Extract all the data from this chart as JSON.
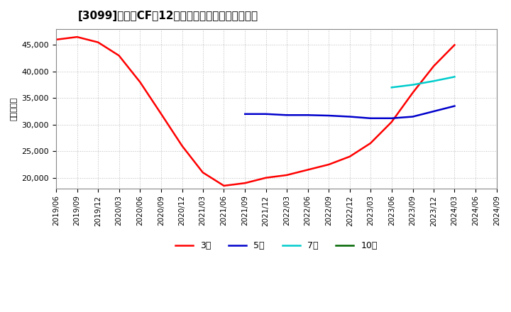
{
  "title": "[3099]　営業CFの12か月移動合計の平均値の推移",
  "ylabel": "（百万円）",
  "bg_color": "#ffffff",
  "plot_bg_color": "#ffffff",
  "grid_color": "#aaaaaa",
  "line_3y": {
    "color": "#ff0000",
    "label": "3年",
    "dates": [
      "2019-06",
      "2019-09",
      "2019-12",
      "2020-03",
      "2020-06",
      "2020-09",
      "2020-12",
      "2021-03",
      "2021-06",
      "2021-09",
      "2021-12",
      "2022-03",
      "2022-06",
      "2022-09",
      "2022-12",
      "2023-03",
      "2023-06",
      "2023-09",
      "2023-12",
      "2024-03"
    ],
    "values": [
      46000,
      46500,
      45500,
      43000,
      38000,
      32000,
      26000,
      21000,
      18500,
      19000,
      20000,
      20500,
      21500,
      22500,
      24000,
      26500,
      30500,
      36000,
      41000,
      45000
    ]
  },
  "line_5y": {
    "color": "#0000cc",
    "label": "5年",
    "dates": [
      "2021-09",
      "2021-12",
      "2022-03",
      "2022-06",
      "2022-09",
      "2022-12",
      "2023-03",
      "2023-06",
      "2023-09",
      "2023-12",
      "2024-03"
    ],
    "values": [
      32000,
      32000,
      31800,
      31800,
      31700,
      31500,
      31200,
      31200,
      31500,
      32500,
      33500
    ]
  },
  "line_7y": {
    "color": "#00cccc",
    "label": "7年",
    "dates": [
      "2023-06",
      "2023-09",
      "2023-12",
      "2024-03"
    ],
    "values": [
      37000,
      37500,
      38200,
      39000
    ]
  },
  "line_10y": {
    "color": "#006600",
    "label": "10年",
    "dates": [],
    "values": []
  },
  "ylim": [
    18000,
    48000
  ],
  "yticks": [
    20000,
    25000,
    30000,
    35000,
    40000,
    45000
  ],
  "xstart": "2019-06",
  "xend": "2024-09"
}
